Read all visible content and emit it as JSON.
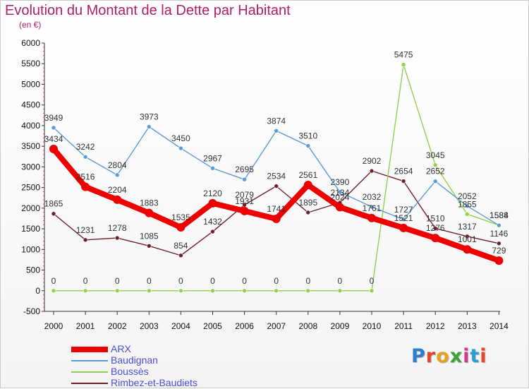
{
  "title": "Evolution du Montant de la Dette par Habitant",
  "subtitle": "(en €)",
  "logo": {
    "text": "Proxiti",
    "colors": [
      "#2e7dd1",
      "#e8442a",
      "#e8a21f",
      "#3aa33a",
      "#d43b8c",
      "#2e9fd1",
      "#e8442a"
    ]
  },
  "chart_data": {
    "type": "line",
    "title": "Evolution du Montant de la Dette par Habitant",
    "subtitle": "(en €)",
    "x": [
      "2000",
      "2001",
      "2002",
      "2003",
      "2004",
      "2005",
      "2006",
      "2007",
      "2008",
      "2009",
      "2010",
      "2011",
      "2012",
      "2013",
      "2014"
    ],
    "ylim": [
      -500,
      6000
    ],
    "yticks": [
      "-500",
      "0",
      "500",
      "1000",
      "1500",
      "2000",
      "2500",
      "3000",
      "3500",
      "4000",
      "4500",
      "5000",
      "5500",
      "6000"
    ],
    "grid": false,
    "legend_position": "bottom-left",
    "series": [
      {
        "name": "Rimbez-et-Baudiets",
        "color": "#6e1f2a",
        "values": [
          1865,
          1231,
          1278,
          1085,
          854,
          1432,
          2079,
          2534,
          1895,
          2134,
          2902,
          2654,
          1510,
          1317,
          1146
        ]
      },
      {
        "name": "Boussès",
        "color": "#92d04f",
        "values": [
          0,
          0,
          0,
          0,
          0,
          0,
          0,
          0,
          0,
          0,
          0,
          5475,
          3045,
          1855,
          1588
        ]
      },
      {
        "name": "Baudignan",
        "color": "#5b9bd5",
        "values": [
          3949,
          3242,
          2804,
          3973,
          3450,
          2967,
          2695,
          3874,
          3510,
          2390,
          2032,
          1727,
          2652,
          2052,
          1584
        ]
      },
      {
        "name": "ARX",
        "color": "#ee0000",
        "values": [
          3434,
          2516,
          2204,
          1883,
          1535,
          2120,
          1931,
          1741,
          2561,
          2024,
          1761,
          1521,
          1276,
          1001,
          729
        ]
      }
    ]
  },
  "legend_order": [
    "ARX",
    "Baudignan",
    "Boussès",
    "Rimbez-et-Baudiets"
  ]
}
